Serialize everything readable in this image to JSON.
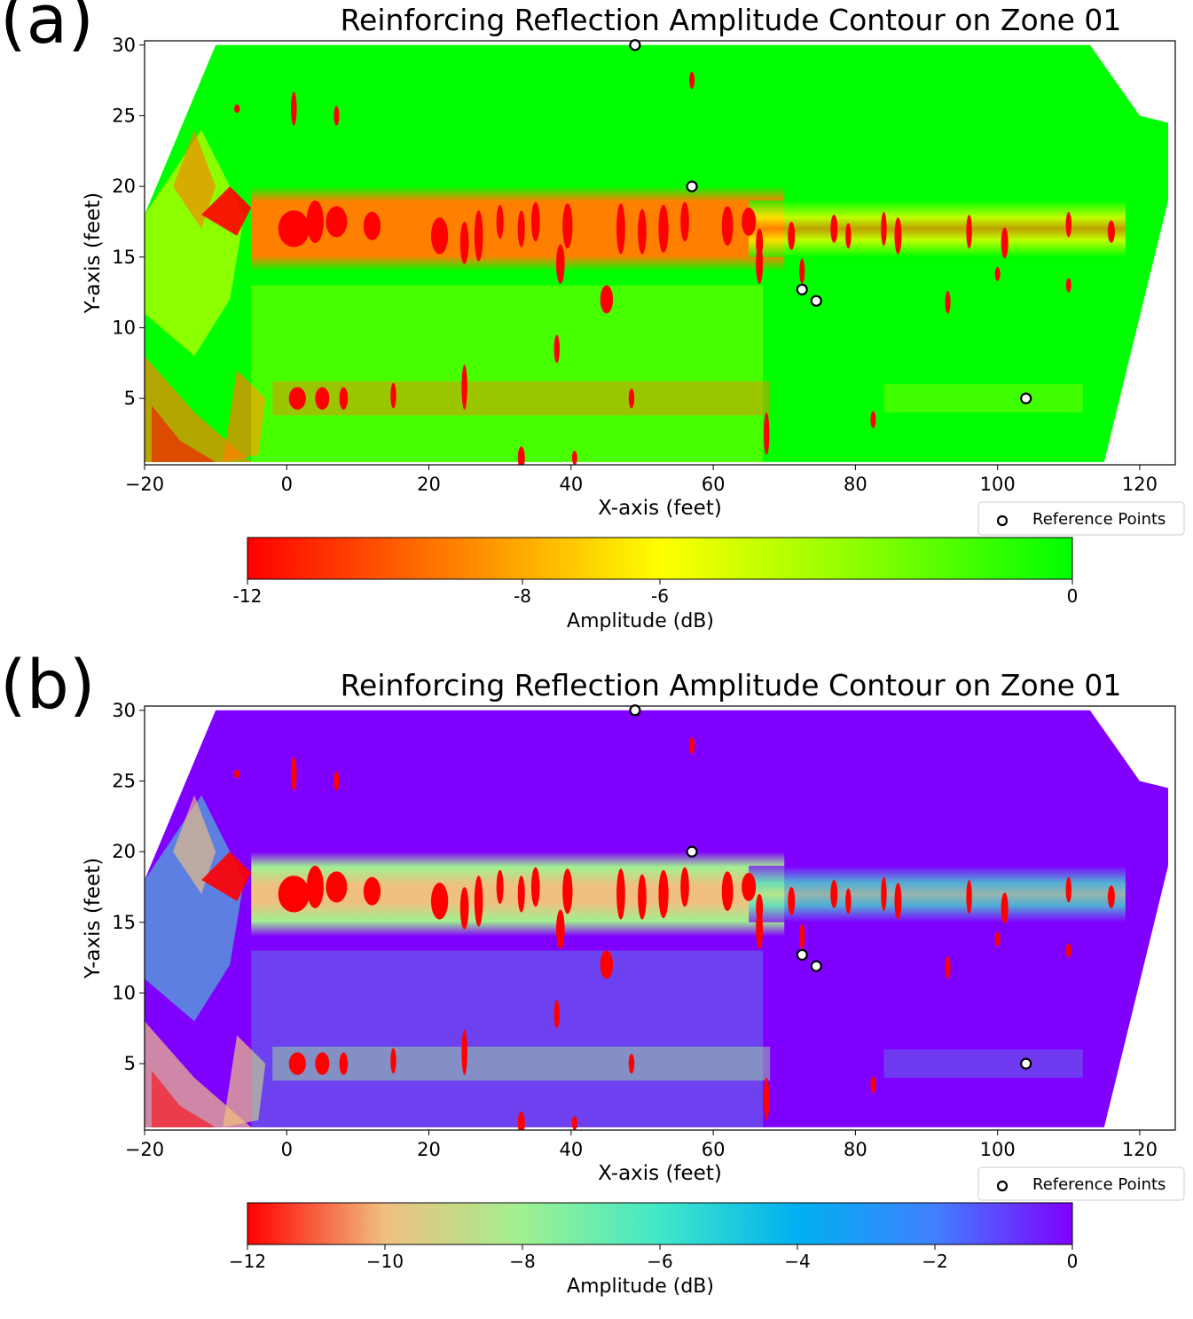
{
  "panels": [
    {
      "letter": "(a)",
      "chart_data": {
        "type": "heatmap",
        "title": "Reinforcing Reflection Amplitude Contour on Zone 01",
        "xlabel": "X-axis (feet)",
        "ylabel": "Y-axis (feet)",
        "xlim": [
          -20,
          125
        ],
        "ylim": [
          0.3,
          30.3
        ],
        "xticks": [
          "−20",
          "0",
          "20",
          "40",
          "60",
          "80",
          "100",
          "120"
        ],
        "yticks": [
          "5",
          "10",
          "15",
          "20",
          "25",
          "30"
        ],
        "legend": {
          "label": "Reference Points",
          "placement": "bottom-right"
        },
        "reference_points": [
          {
            "x": 49,
            "y": 30
          },
          {
            "x": 57,
            "y": 20
          },
          {
            "x": 72.5,
            "y": 12.7
          },
          {
            "x": 74.5,
            "y": 11.9
          },
          {
            "x": 104,
            "y": 5
          }
        ],
        "colorbar": {
          "label": "Amplitude (dB)",
          "range": [
            -12,
            0
          ],
          "ticks": [
            "-12",
            "-8",
            "-6",
            "0"
          ],
          "tick_values": [
            -12,
            -8,
            -6,
            0
          ],
          "colormap": [
            "#ff0000",
            "#ff8000",
            "#ffff00",
            "#88ff00",
            "#00ff00"
          ]
        },
        "colormap_name": "red-yellow-green"
      }
    },
    {
      "letter": "(b)",
      "chart_data": {
        "type": "heatmap",
        "title": "Reinforcing Reflection Amplitude Contour on Zone 01",
        "xlabel": "X-axis (feet)",
        "ylabel": "Y-axis (feet)",
        "xlim": [
          -20,
          125
        ],
        "ylim": [
          0.3,
          30.3
        ],
        "xticks": [
          "−20",
          "0",
          "20",
          "40",
          "60",
          "80",
          "100",
          "120"
        ],
        "yticks": [
          "5",
          "10",
          "15",
          "20",
          "25",
          "30"
        ],
        "legend": {
          "label": "Reference Points",
          "placement": "bottom-right"
        },
        "reference_points": [
          {
            "x": 49,
            "y": 30
          },
          {
            "x": 57,
            "y": 20
          },
          {
            "x": 72.5,
            "y": 12.7
          },
          {
            "x": 74.5,
            "y": 11.9
          },
          {
            "x": 104,
            "y": 5
          }
        ],
        "colorbar": {
          "label": "Amplitude (dB)",
          "range": [
            -12,
            0
          ],
          "ticks": [
            "−12",
            "−10",
            "−8",
            "−6",
            "−4",
            "−2",
            "0"
          ],
          "tick_values": [
            -12,
            -10,
            -8,
            -6,
            -4,
            -2,
            0
          ],
          "colormap": [
            "#ff0000",
            "#f0c080",
            "#a0f090",
            "#40e8c8",
            "#00b0f0",
            "#4080ff",
            "#8000ff"
          ]
        },
        "colormap_name": "rainbow"
      }
    }
  ]
}
